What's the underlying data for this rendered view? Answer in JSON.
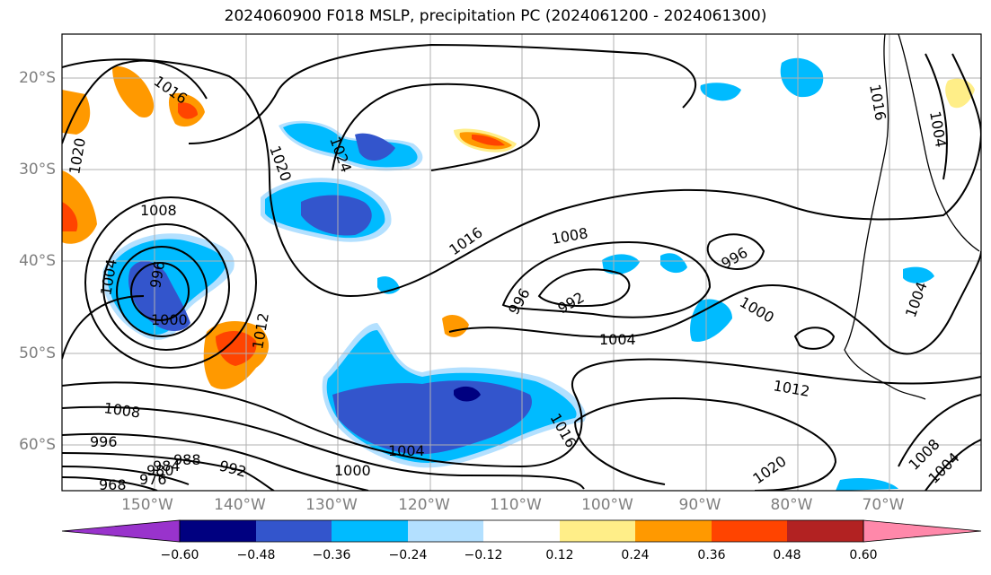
{
  "title": "2024060900 F018 MSLP, precipitation PC (2024061200 - 2024061300)",
  "latitude_labels": [
    "20°S",
    "30°S",
    "40°S",
    "50°S",
    "60°S"
  ],
  "longitude_labels": [
    "150°W",
    "140°W",
    "130°W",
    "120°W",
    "110°W",
    "100°W",
    "90°W",
    "80°W",
    "70°W"
  ],
  "contour_labels": [
    "1016",
    "1020",
    "1020",
    "1024",
    "1008",
    "1004",
    "996",
    "1000",
    "1012",
    "1016",
    "1008",
    "996",
    "992",
    "996",
    "1000",
    "1004",
    "1012",
    "1016",
    "1020",
    "1008",
    "996",
    "988",
    "984",
    "980",
    "976",
    "968",
    "992",
    "1000",
    "1004",
    "1016",
    "1004",
    "1004",
    "1008",
    "1004"
  ],
  "colorbar": {
    "ticks": [
      "−0.60",
      "−0.48",
      "−0.36",
      "−0.24",
      "−0.12",
      "0.12",
      "0.24",
      "0.36",
      "0.48",
      "0.60"
    ],
    "colors": [
      "#9933cc",
      "#000080",
      "#3355cc",
      "#00bbff",
      "#b3e0ff",
      "#ffffff",
      "#ffee88",
      "#ff9900",
      "#ff4400",
      "#b22222",
      "#ff88aa"
    ]
  },
  "precip_colors": {
    "light_blue": "#b3e0ff",
    "cyan": "#00bbff",
    "blue": "#3355cc",
    "navy": "#000080",
    "yellow": "#ffee88",
    "orange": "#ff9900",
    "red": "#ff4400",
    "dark_red": "#b22222"
  }
}
